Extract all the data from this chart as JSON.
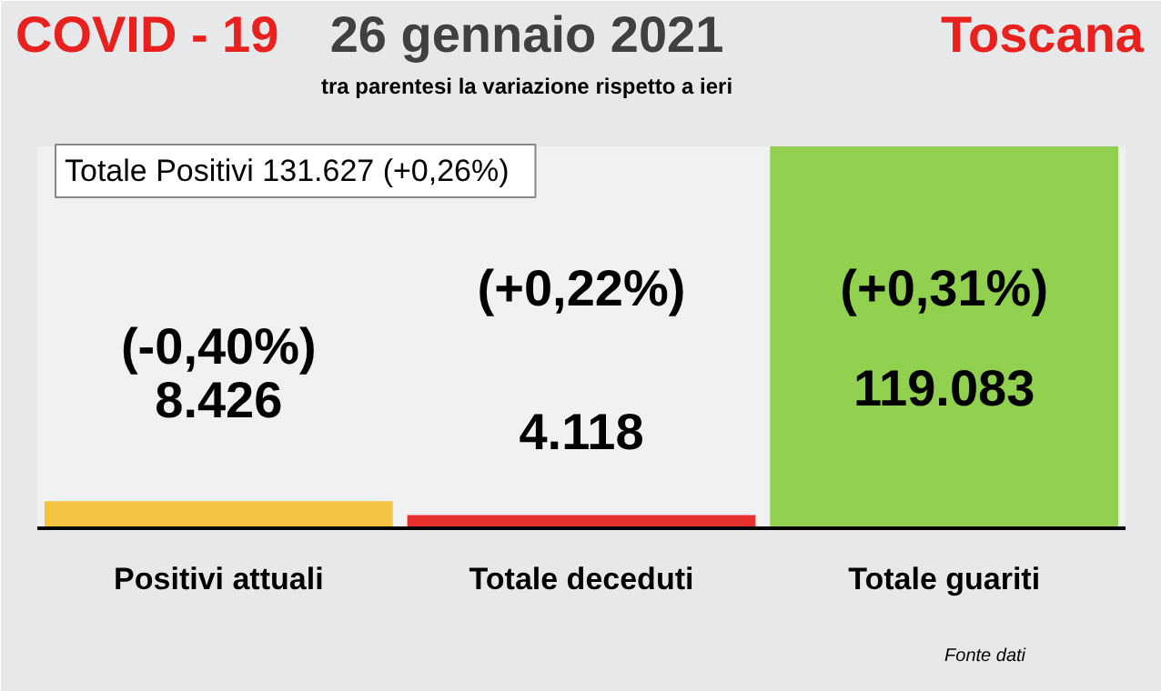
{
  "chart_data": {
    "type": "bar",
    "title": "26 gennaio 2021",
    "subtitle": "tra parentesi la variazione rispetto a ieri",
    "categories": [
      "Positivi attuali",
      "Totale deceduti",
      "Totale guariti"
    ],
    "values": [
      8426,
      4118,
      119083
    ],
    "colors": [
      "#f5c342",
      "#e8312f",
      "#92d050"
    ],
    "value_labels": [
      "8.426",
      "4.118",
      "119.083"
    ],
    "annotations": [
      "(-0,40%)",
      "(+0,22%)",
      "(+0,31%)",
      "COVID - 19",
      "Toscana",
      "Totale Positivi   131.627 (+0,26%)",
      "Fonte dati"
    ]
  }
}
